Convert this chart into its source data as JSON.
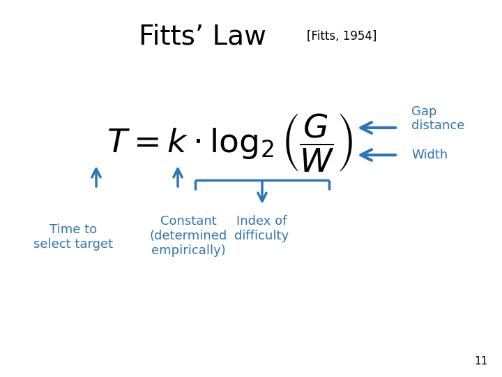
{
  "title": "Fitts’ Law",
  "subtitle": "[Fitts, 1954]",
  "formula": "$T = k \\cdot \\log_2\\left(\\dfrac{G}{W}\\right)$",
  "blue_color": "#2E75B6",
  "black_color": "#000000",
  "bg_color": "#FFFFFF",
  "label_time": "Time to\nselect target",
  "label_constant": "Constant\n(determined\nempirically)",
  "label_index": "Index of\ndifficulty",
  "label_gap": "Gap\ndistance",
  "label_width": "Width",
  "page_number": "11"
}
